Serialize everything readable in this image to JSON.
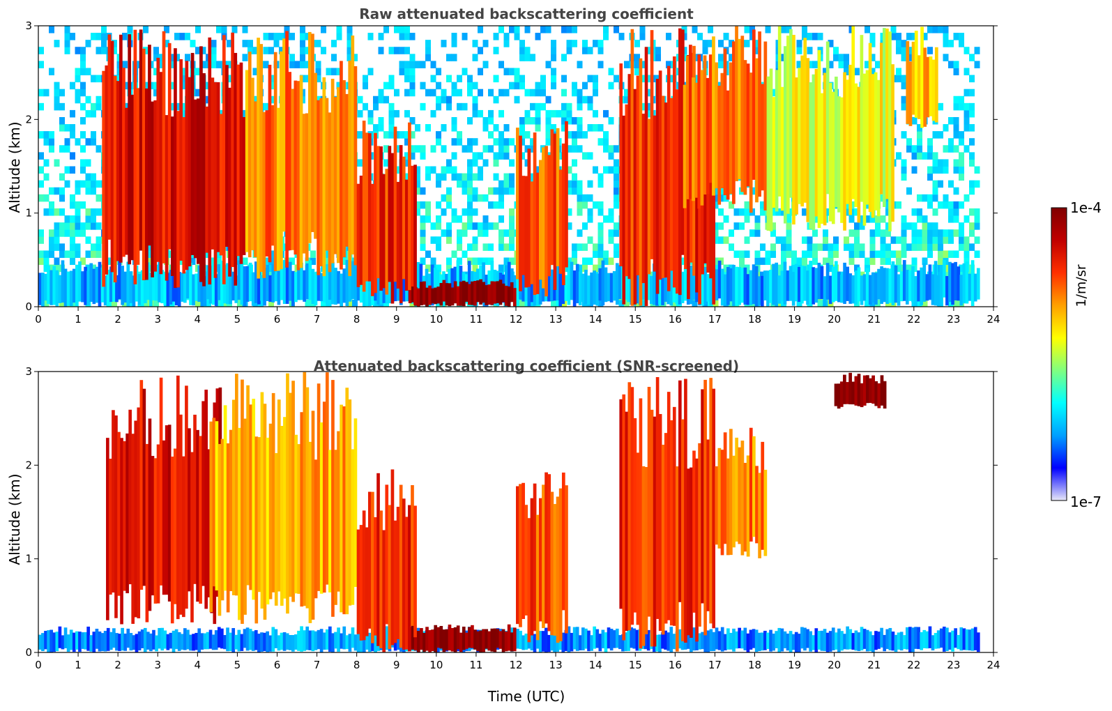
{
  "chart_data": [
    {
      "type": "heatmap",
      "title": "Raw attenuated backscattering coefficient",
      "xlabel": "",
      "ylabel": "Altitude (km)",
      "xlim": [
        0,
        24
      ],
      "ylim": [
        0,
        3
      ],
      "x_ticks": [
        "0",
        "1",
        "2",
        "3",
        "4",
        "5",
        "6",
        "7",
        "8",
        "9",
        "10",
        "11",
        "12",
        "13",
        "14",
        "15",
        "16",
        "17",
        "18",
        "19",
        "20",
        "21",
        "22",
        "23",
        "24"
      ],
      "y_ticks": [
        "0",
        "1",
        "2",
        "3"
      ],
      "data_end_time": 23.65,
      "features": [
        {
          "desc": "surface layer",
          "t_start": 0,
          "t_end": 23.65,
          "z_top": 0.5,
          "level": 0.25
        },
        {
          "desc": "falling streak",
          "t_start": 1.6,
          "t_end": 5.2,
          "z_top": 3.0,
          "z_bottom": 0.2,
          "level": 0.85
        },
        {
          "desc": "cloud streaks",
          "t_start": 5.2,
          "t_end": 8.0,
          "z_top": 3.0,
          "z_bottom": 0.3,
          "level": 0.7
        },
        {
          "desc": "low dense layer",
          "t_start": 9.3,
          "t_end": 12.0,
          "z_top": 0.3,
          "z_bottom": 0.0,
          "level": 0.98
        },
        {
          "desc": "streaks",
          "t_start": 8.0,
          "t_end": 9.5,
          "z_top": 2.0,
          "z_bottom": 0.0,
          "level": 0.8
        },
        {
          "desc": "streaks",
          "t_start": 12.0,
          "t_end": 13.3,
          "z_top": 2.0,
          "z_bottom": 0.1,
          "level": 0.75
        },
        {
          "desc": "thick cloud",
          "t_start": 14.6,
          "t_end": 17.0,
          "z_top": 3.0,
          "z_bottom": 0.0,
          "level": 0.8
        },
        {
          "desc": "upper cloud",
          "t_start": 16.2,
          "t_end": 18.3,
          "z_top": 3.0,
          "z_bottom": 1.0,
          "level": 0.72
        },
        {
          "desc": "mid cloud",
          "t_start": 18.3,
          "t_end": 21.5,
          "z_top": 3.0,
          "z_bottom": 0.8,
          "level": 0.55
        },
        {
          "desc": "high cloud",
          "t_start": 21.8,
          "t_end": 22.6,
          "z_top": 3.0,
          "z_bottom": 1.9,
          "level": 0.65
        }
      ]
    },
    {
      "type": "heatmap",
      "title": "Attenuated backscattering coefficient (SNR-screened)",
      "xlabel": "Time (UTC)",
      "ylabel": "Altitude (km)",
      "xlim": [
        0,
        24
      ],
      "ylim": [
        0,
        3
      ],
      "x_ticks": [
        "0",
        "1",
        "2",
        "3",
        "4",
        "5",
        "6",
        "7",
        "8",
        "9",
        "10",
        "11",
        "12",
        "13",
        "14",
        "15",
        "16",
        "17",
        "18",
        "19",
        "20",
        "21",
        "22",
        "23",
        "24"
      ],
      "y_ticks": [
        "0",
        "1",
        "2",
        "3"
      ],
      "data_end_time": 23.65,
      "features": [
        {
          "desc": "surface layer",
          "t_start": 0,
          "t_end": 23.65,
          "z_top": 0.28,
          "level": 0.22
        },
        {
          "desc": "falling streak",
          "t_start": 1.7,
          "t_end": 4.6,
          "z_top": 3.0,
          "z_bottom": 0.3,
          "level": 0.85
        },
        {
          "desc": "cloud streaks",
          "t_start": 4.3,
          "t_end": 8.0,
          "z_top": 3.0,
          "z_bottom": 0.3,
          "level": 0.65
        },
        {
          "desc": "low dense layer",
          "t_start": 9.3,
          "t_end": 12.0,
          "z_top": 0.3,
          "z_bottom": 0.0,
          "level": 0.99
        },
        {
          "desc": "streaks",
          "t_start": 8.0,
          "t_end": 9.5,
          "z_top": 2.0,
          "z_bottom": 0.0,
          "level": 0.8
        },
        {
          "desc": "streaks",
          "t_start": 12.0,
          "t_end": 13.3,
          "z_top": 2.0,
          "z_bottom": 0.1,
          "level": 0.75
        },
        {
          "desc": "thick cloud",
          "t_start": 14.6,
          "t_end": 17.0,
          "z_top": 3.0,
          "z_bottom": 0.0,
          "level": 0.8
        },
        {
          "desc": "upper cloud",
          "t_start": 17.0,
          "t_end": 18.3,
          "z_top": 2.4,
          "z_bottom": 1.0,
          "level": 0.7
        },
        {
          "desc": "high cloud",
          "t_start": 20.0,
          "t_end": 21.3,
          "z_top": 3.0,
          "z_bottom": 2.6,
          "level": 0.99
        }
      ]
    }
  ],
  "colorbar": {
    "max_label": "1e-4",
    "min_label": "1e-7",
    "unit_label": "1/m/sr",
    "colors": [
      "#e8e8f8",
      "#0000ff",
      "#00a0ff",
      "#00ffff",
      "#80ff80",
      "#ffff00",
      "#ffa000",
      "#ff3000",
      "#c00000",
      "#800000"
    ]
  }
}
